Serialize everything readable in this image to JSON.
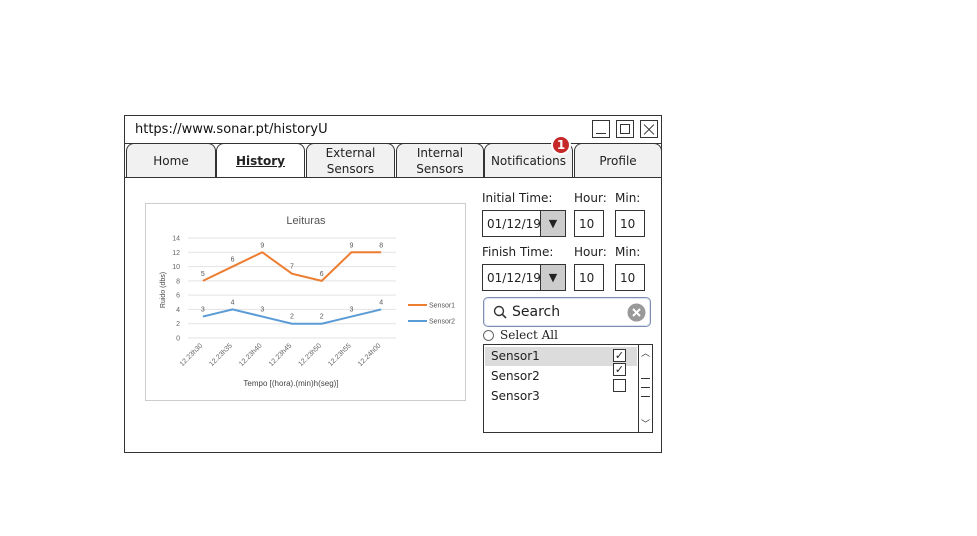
{
  "window": {
    "url": "https://www.sonar.pt/historyU"
  },
  "tabs": [
    {
      "label": "Home"
    },
    {
      "label": "History"
    },
    {
      "label": "External\nSensors"
    },
    {
      "label": "Internal\nSensors"
    },
    {
      "label": "Notifications"
    },
    {
      "label": "Profile"
    }
  ],
  "notifications_badge": "1",
  "filters": {
    "initial_label": "Initial Time:",
    "finish_label": "Finish Time:",
    "hour_label": "Hour:",
    "min_label": "Min:",
    "initial_date": "01/12/19",
    "initial_hour": "10",
    "initial_min": "10",
    "finish_date": "01/12/19",
    "finish_hour": "10",
    "finish_min": "10"
  },
  "search": {
    "placeholder": "Search"
  },
  "select_all": "Select All",
  "sensors": [
    {
      "label": "Sensor1",
      "checked": true
    },
    {
      "label": "Sensor2",
      "checked": true
    },
    {
      "label": "Sensor3",
      "checked": false
    }
  ],
  "chart_data": {
    "type": "line",
    "title": "Leituras",
    "xlabel": "Tempo [(hora).(min)h(seg)]",
    "ylabel": "Ruido (dbs)",
    "categories": [
      "12.23h30",
      "12.23h35",
      "12.23h40",
      "12.23h45",
      "12.23h50",
      "12.23h55",
      "12.24h00"
    ],
    "ylim": [
      0,
      14
    ],
    "yticks": [
      0,
      2,
      4,
      6,
      8,
      10,
      12,
      14
    ],
    "grid": true,
    "legend": "right",
    "series": [
      {
        "name": "Sensor1",
        "color": "#ed7d31",
        "values": [
          5,
          6,
          9,
          7,
          6,
          9,
          8
        ],
        "plot": [
          8,
          10,
          12,
          9,
          8,
          12,
          12
        ]
      },
      {
        "name": "Sensor2",
        "color": "#5b9bd5",
        "values": [
          3,
          4,
          3,
          2,
          2,
          3,
          4
        ],
        "plot": [
          3,
          4,
          3,
          2,
          2,
          3,
          4
        ]
      }
    ]
  }
}
